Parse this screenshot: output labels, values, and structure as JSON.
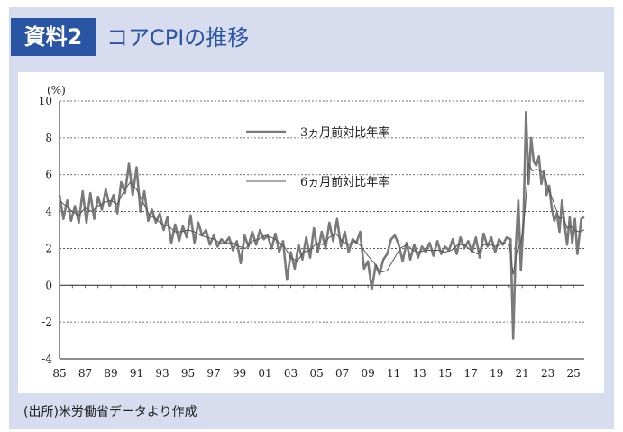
{
  "header": {
    "badge": "資料2",
    "title": "コアCPIの推移"
  },
  "footer": {
    "source": "(出所)米労働省データより作成"
  },
  "chart_data": {
    "type": "line",
    "ylabel": "(%)",
    "ylim": [
      -4,
      10
    ],
    "yticks": [
      "10",
      "8",
      "6",
      "4",
      "2",
      "0",
      "-2",
      "-4"
    ],
    "xlim": [
      1985.0,
      2025.83
    ],
    "xticks": [
      "85",
      "87",
      "89",
      "91",
      "93",
      "95",
      "97",
      "99",
      "01",
      "03",
      "05",
      "07",
      "09",
      "11",
      "13",
      "15",
      "17",
      "19",
      "21",
      "23",
      "25"
    ],
    "grid": "dashed horizontal",
    "legend_placement": "top-center",
    "series": [
      {
        "name": "3ヵ月前対比年率",
        "color": "#7a7a7a",
        "x": [
          1985.0,
          1985.3,
          1985.6,
          1985.9,
          1986.2,
          1986.5,
          1986.8,
          1987.1,
          1987.4,
          1987.7,
          1988.0,
          1988.3,
          1988.6,
          1988.9,
          1989.2,
          1989.5,
          1989.8,
          1990.1,
          1990.4,
          1990.7,
          1991.0,
          1991.3,
          1991.6,
          1991.9,
          1992.2,
          1992.5,
          1992.8,
          1993.1,
          1993.4,
          1993.7,
          1994.0,
          1994.3,
          1994.6,
          1994.9,
          1995.2,
          1995.5,
          1995.8,
          1996.1,
          1996.4,
          1996.7,
          1997.0,
          1997.3,
          1997.6,
          1997.9,
          1998.2,
          1998.5,
          1998.8,
          1999.1,
          1999.4,
          1999.7,
          2000.0,
          2000.3,
          2000.6,
          2000.9,
          2001.2,
          2001.5,
          2001.8,
          2002.1,
          2002.4,
          2002.7,
          2003.0,
          2003.3,
          2003.6,
          2003.9,
          2004.2,
          2004.5,
          2004.8,
          2005.1,
          2005.4,
          2005.7,
          2006.0,
          2006.3,
          2006.6,
          2006.9,
          2007.2,
          2007.5,
          2007.8,
          2008.1,
          2008.4,
          2008.7,
          2009.0,
          2009.3,
          2009.6,
          2009.9,
          2010.2,
          2010.5,
          2010.8,
          2011.1,
          2011.4,
          2011.7,
          2012.0,
          2012.3,
          2012.6,
          2012.9,
          2013.2,
          2013.5,
          2013.8,
          2014.1,
          2014.4,
          2014.7,
          2015.0,
          2015.3,
          2015.6,
          2015.9,
          2016.2,
          2016.5,
          2016.8,
          2017.1,
          2017.4,
          2017.7,
          2018.0,
          2018.3,
          2018.6,
          2018.9,
          2019.2,
          2019.5,
          2019.8,
          2020.1,
          2020.3,
          2020.5,
          2020.7,
          2020.9,
          2021.1,
          2021.3,
          2021.5,
          2021.7,
          2021.9,
          2022.1,
          2022.3,
          2022.5,
          2022.7,
          2022.9,
          2023.1,
          2023.3,
          2023.5,
          2023.7,
          2023.9,
          2024.1,
          2024.3,
          2024.5,
          2024.7,
          2024.9,
          2025.1,
          2025.3,
          2025.6,
          2025.83
        ],
        "y": [
          4.9,
          3.6,
          4.6,
          3.5,
          4.3,
          3.4,
          5.1,
          3.4,
          5.0,
          3.6,
          4.8,
          4.1,
          5.2,
          4.3,
          4.9,
          3.9,
          5.6,
          5.0,
          6.6,
          4.9,
          6.4,
          4.0,
          5.1,
          3.5,
          4.1,
          3.4,
          3.9,
          3.0,
          3.7,
          2.3,
          3.3,
          2.4,
          3.2,
          2.6,
          3.8,
          2.3,
          3.4,
          2.7,
          3.0,
          2.2,
          2.7,
          2.1,
          2.5,
          2.3,
          2.6,
          1.9,
          2.4,
          1.2,
          2.7,
          2.1,
          2.9,
          2.2,
          3.0,
          2.5,
          2.7,
          2.0,
          2.8,
          1.8,
          2.4,
          0.3,
          1.8,
          0.9,
          2.2,
          1.4,
          2.6,
          1.5,
          3.1,
          1.8,
          2.9,
          2.0,
          3.4,
          2.4,
          3.6,
          2.1,
          2.9,
          1.8,
          2.5,
          2.3,
          2.9,
          0.9,
          1.3,
          -0.2,
          1.1,
          0.6,
          1.4,
          1.7,
          2.5,
          2.7,
          2.2,
          1.3,
          2.3,
          1.4,
          2.2,
          1.5,
          2.1,
          1.8,
          2.3,
          1.6,
          2.4,
          1.7,
          2.1,
          1.9,
          2.5,
          1.7,
          2.6,
          2.0,
          2.4,
          1.8,
          2.6,
          1.5,
          2.8,
          2.1,
          2.6,
          1.8,
          2.5,
          2.2,
          2.6,
          2.5,
          -2.9,
          2.0,
          4.6,
          0.8,
          3.5,
          9.4,
          5.5,
          8.0,
          6.7,
          6.5,
          7.0,
          5.5,
          6.2,
          4.9,
          5.4,
          4.2,
          3.5,
          3.9,
          2.9,
          4.6,
          3.3,
          2.2,
          3.7,
          2.3,
          3.6,
          1.7,
          3.6,
          3.7
        ]
      },
      {
        "name": "6ヵ月前対比年率",
        "color": "#555555",
        "x": [
          1985.0,
          1985.5,
          1986.0,
          1986.5,
          1987.0,
          1987.5,
          1988.0,
          1988.5,
          1989.0,
          1989.5,
          1990.0,
          1990.5,
          1991.0,
          1991.5,
          1992.0,
          1992.5,
          1993.0,
          1993.5,
          1994.0,
          1994.5,
          1995.0,
          1995.5,
          1996.0,
          1996.5,
          1997.0,
          1997.5,
          1998.0,
          1998.5,
          1999.0,
          1999.5,
          2000.0,
          2000.5,
          2001.0,
          2001.5,
          2002.0,
          2002.5,
          2003.0,
          2003.5,
          2004.0,
          2004.5,
          2005.0,
          2005.5,
          2006.0,
          2006.5,
          2007.0,
          2007.5,
          2008.0,
          2008.5,
          2009.0,
          2009.5,
          2010.0,
          2010.5,
          2011.0,
          2011.5,
          2012.0,
          2012.5,
          2013.0,
          2013.5,
          2014.0,
          2014.5,
          2015.0,
          2015.5,
          2016.0,
          2016.5,
          2017.0,
          2017.5,
          2018.0,
          2018.5,
          2019.0,
          2019.5,
          2020.0,
          2020.3,
          2020.6,
          2020.9,
          2021.2,
          2021.5,
          2021.8,
          2022.1,
          2022.4,
          2022.7,
          2023.0,
          2023.3,
          2023.6,
          2023.9,
          2024.2,
          2024.5,
          2024.8,
          2025.1,
          2025.4,
          2025.83
        ],
        "y": [
          4.6,
          4.3,
          4.0,
          3.8,
          4.2,
          4.0,
          4.3,
          4.5,
          4.6,
          4.4,
          5.1,
          5.6,
          5.2,
          4.5,
          3.8,
          3.6,
          3.3,
          3.2,
          2.9,
          2.9,
          3.0,
          2.9,
          2.7,
          2.6,
          2.5,
          2.3,
          2.3,
          2.3,
          2.1,
          2.0,
          2.4,
          2.5,
          2.7,
          2.6,
          2.4,
          2.1,
          1.5,
          1.3,
          1.8,
          1.9,
          2.3,
          2.2,
          2.6,
          2.8,
          2.4,
          2.2,
          2.4,
          2.1,
          1.6,
          1.2,
          0.7,
          0.8,
          1.4,
          2.0,
          2.2,
          1.9,
          1.8,
          1.9,
          1.9,
          1.9,
          1.8,
          1.9,
          2.2,
          2.2,
          1.9,
          1.7,
          2.2,
          2.2,
          2.1,
          2.3,
          2.2,
          0.6,
          1.9,
          2.3,
          3.9,
          6.6,
          6.2,
          6.3,
          6.2,
          6.1,
          5.3,
          4.8,
          4.2,
          3.6,
          3.7,
          3.1,
          3.2,
          3.0,
          2.9,
          3.0
        ]
      }
    ]
  }
}
